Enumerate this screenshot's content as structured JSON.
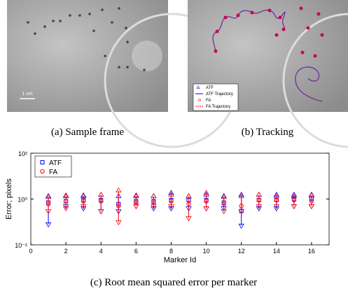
{
  "panels": [
    {
      "caption": "(a) Sample frame",
      "scale_label": "1 cm"
    },
    {
      "caption": "(b) Tracking",
      "legend": [
        "ATF",
        "ATF Trajectory",
        "FA",
        "FA Trajectory"
      ]
    }
  ],
  "chart_data": {
    "type": "errorbar",
    "caption": "(c) Root mean squared error per marker",
    "x_label": "Marker Id",
    "y_label": "Error; pixels",
    "x": [
      1,
      2,
      3,
      4,
      5,
      6,
      7,
      8,
      9,
      10,
      11,
      12,
      13,
      14,
      15,
      16
    ],
    "series": [
      {
        "name": "ATF",
        "color": "#0000ff",
        "marker": "square",
        "values": [
          0.7,
          0.8,
          0.9,
          0.9,
          0.6,
          0.8,
          0.8,
          0.9,
          0.9,
          0.9,
          0.7,
          0.3,
          0.9,
          0.9,
          1.0,
          1.0
        ],
        "low": [
          0.08,
          0.5,
          0.4,
          0.3,
          0.3,
          0.5,
          0.4,
          0.4,
          0.4,
          0.4,
          0.4,
          0.07,
          0.4,
          0.4,
          0.5,
          0.5
        ],
        "high": [
          1.3,
          1.3,
          1.4,
          1.5,
          1.3,
          1.3,
          1.3,
          1.8,
          1.3,
          1.5,
          1.3,
          1.5,
          1.5,
          1.5,
          1.5,
          1.5
        ]
      },
      {
        "name": "FA",
        "color": "#ff0000",
        "marker": "circle",
        "values": [
          0.6,
          0.8,
          0.8,
          0.8,
          0.5,
          0.7,
          0.7,
          0.8,
          0.6,
          0.8,
          0.6,
          0.5,
          0.9,
          0.9,
          0.9,
          0.8
        ],
        "low": [
          0.3,
          0.4,
          0.5,
          0.3,
          0.1,
          0.5,
          0.5,
          0.5,
          0.15,
          0.4,
          0.3,
          0.3,
          0.5,
          0.5,
          0.5,
          0.5
        ],
        "high": [
          1.2,
          1.4,
          1.3,
          1.5,
          2.3,
          1.4,
          1.3,
          1.5,
          1.3,
          1.8,
          1.2,
          1.3,
          1.5,
          1.3,
          1.3,
          1.4
        ]
      }
    ],
    "xlim": [
      0,
      17
    ],
    "xticks": [
      0,
      2,
      4,
      6,
      8,
      10,
      12,
      14,
      16
    ],
    "ylim": [
      0.01,
      100
    ],
    "log_y": true,
    "yticks": [
      {
        "value": 0.01,
        "label": "10⁻²"
      },
      {
        "value": 1,
        "label": "10⁰"
      },
      {
        "value": 100,
        "label": "10²"
      }
    ],
    "legend": "upper left"
  }
}
